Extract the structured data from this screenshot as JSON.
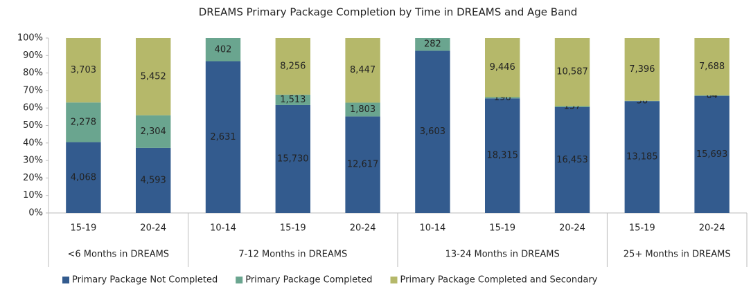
{
  "chart_data": {
    "type": "bar",
    "stacked": "percent",
    "title": "DREAMS Primary Package Completion by Time in DREAMS and Age Band",
    "groups": [
      {
        "name": "<6 Months in DREAMS",
        "categories": [
          "15-19",
          "20-24"
        ]
      },
      {
        "name": "7-12 Months in DREAMS",
        "categories": [
          "10-14",
          "15-19",
          "20-24"
        ]
      },
      {
        "name": "13-24 Months in DREAMS",
        "categories": [
          "10-14",
          "15-19",
          "20-24"
        ]
      },
      {
        "name": "25+ Months in DREAMS",
        "categories": [
          "15-19",
          "20-24"
        ]
      }
    ],
    "series": [
      {
        "name": "Primary Package Not Completed",
        "color": "#335b8e",
        "values": [
          4068,
          4593,
          2631,
          15730,
          12617,
          3603,
          18315,
          16453,
          13185,
          15693
        ],
        "value_labels": [
          "4,068",
          "4,593",
          "2,631",
          "15,730",
          "12,617",
          "3,603",
          "18,315",
          "16,453",
          "13,185",
          "15,693"
        ]
      },
      {
        "name": "Primary Package Completed",
        "color": "#6aa58f",
        "values": [
          2278,
          2304,
          402,
          1513,
          1803,
          282,
          196,
          157,
          36,
          64
        ],
        "value_labels": [
          "2,278",
          "2,304",
          "402",
          "1,513",
          "1,803",
          "282",
          "196",
          "157",
          "36",
          "64"
        ]
      },
      {
        "name": "Primary Package Completed and Secondary",
        "color": "#b5b86a",
        "values": [
          3703,
          5452,
          null,
          8256,
          8447,
          null,
          9446,
          10587,
          7396,
          7688
        ],
        "value_labels": [
          "3,703",
          "5,452",
          null,
          "8,256",
          "8,447",
          null,
          "9,446",
          "10,587",
          "7,396",
          "7,688"
        ]
      }
    ],
    "ylim": [
      0,
      100
    ],
    "yticks": [
      {
        "value": 0,
        "label": "0%"
      },
      {
        "value": 10,
        "label": "10%"
      },
      {
        "value": 20,
        "label": "20%"
      },
      {
        "value": 30,
        "label": "30%"
      },
      {
        "value": 40,
        "label": "40%"
      },
      {
        "value": 50,
        "label": "50%"
      },
      {
        "value": 60,
        "label": "60%"
      },
      {
        "value": 70,
        "label": "70%"
      },
      {
        "value": 80,
        "label": "80%"
      },
      {
        "value": 90,
        "label": "90%"
      },
      {
        "value": 100,
        "label": "100%"
      }
    ],
    "legend": "bottom"
  }
}
